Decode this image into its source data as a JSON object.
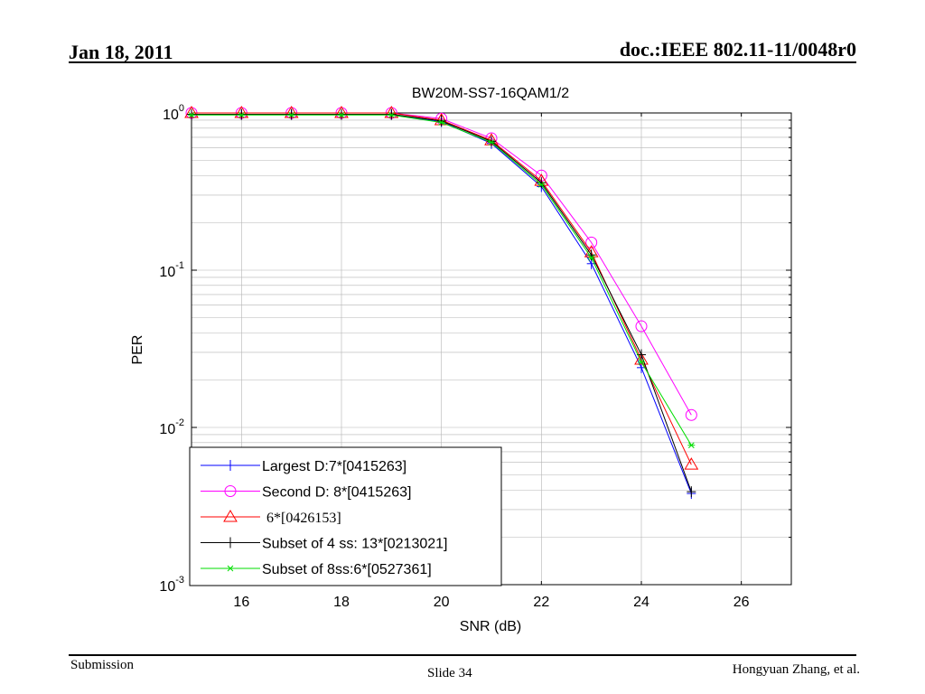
{
  "header": {
    "date": "Jan 18, 2011",
    "doc": "doc.:IEEE 802.11-11/0048r0"
  },
  "footer": {
    "left": "Submission",
    "center": "Slide 34",
    "right": "Hongyuan Zhang, et al."
  },
  "chart_data": {
    "type": "line",
    "title": "BW20M-SS7-16QAM1/2",
    "xlabel": "SNR (dB)",
    "ylabel": "PER",
    "xlim": [
      15,
      27
    ],
    "ylim": [
      0.001,
      1
    ],
    "y_scale": "log",
    "x_ticks": [
      16,
      18,
      20,
      22,
      24,
      26
    ],
    "y_ticks": [
      {
        "value": 1,
        "base": "10",
        "exp": "0"
      },
      {
        "value": 0.1,
        "base": "10",
        "exp": "-1"
      },
      {
        "value": 0.01,
        "base": "10",
        "exp": "-2"
      },
      {
        "value": 0.001,
        "base": "10",
        "exp": "-3"
      }
    ],
    "grid": true,
    "legend_position": "bottom-left",
    "x": [
      15,
      16,
      17,
      18,
      19,
      20,
      21,
      22,
      23,
      24,
      25
    ],
    "series": [
      {
        "name": "Largest D:7*[0415263]",
        "color": "#0000ff",
        "marker": "plus",
        "values": [
          0.98,
          0.98,
          0.98,
          0.98,
          0.98,
          0.88,
          0.64,
          0.34,
          0.11,
          0.024,
          0.0038
        ]
      },
      {
        "name": "Second D: 8*[0415263]",
        "color": "#ff00ff",
        "marker": "circle",
        "values": [
          1.0,
          1.0,
          1.0,
          1.0,
          1.0,
          0.92,
          0.69,
          0.4,
          0.15,
          0.044,
          0.012
        ]
      },
      {
        "name": "6*[0426153]",
        "color": "#ff0000",
        "marker": "triangle",
        "values": [
          1.0,
          1.0,
          1.0,
          1.0,
          1.0,
          0.9,
          0.67,
          0.37,
          0.13,
          0.027,
          0.0058
        ]
      },
      {
        "name": "Subset of 4 ss: 13*[0213021]",
        "color": "#000000",
        "marker": "plus",
        "values": [
          0.98,
          0.98,
          0.98,
          0.98,
          0.98,
          0.89,
          0.66,
          0.36,
          0.125,
          0.029,
          0.0039
        ]
      },
      {
        "name": "Subset of 8ss:6*[0527361]",
        "color": "#00dd00",
        "marker": "star",
        "values": [
          0.97,
          0.97,
          0.97,
          0.97,
          0.97,
          0.87,
          0.65,
          0.35,
          0.12,
          0.026,
          0.0077
        ]
      }
    ]
  }
}
